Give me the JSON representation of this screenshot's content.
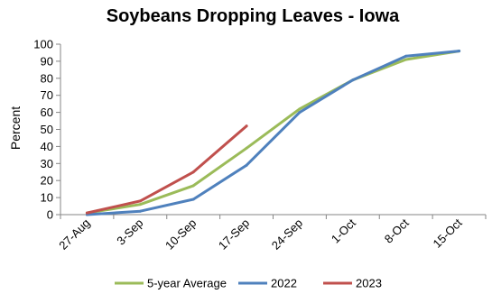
{
  "chart_data": {
    "type": "line",
    "title": "Soybeans Dropping Leaves - Iowa",
    "xlabel": "",
    "ylabel": "Percent",
    "categories": [
      "27-Aug",
      "3-Sep",
      "10-Sep",
      "17-Sep",
      "24-Sep",
      "1-Oct",
      "8-Oct",
      "15-Oct"
    ],
    "ylim": [
      0,
      100
    ],
    "yticks": [
      0,
      10,
      20,
      30,
      40,
      50,
      60,
      70,
      80,
      90,
      100
    ],
    "grid": false,
    "legend_position": "bottom",
    "series": [
      {
        "name": "5-year Average",
        "color": "#9BBB59",
        "x": [
          0,
          1,
          2,
          3,
          4,
          5,
          6,
          7
        ],
        "y": [
          1,
          6,
          17,
          39,
          62,
          79,
          91,
          96
        ]
      },
      {
        "name": "2022",
        "color": "#4F81BD",
        "x": [
          0,
          1,
          2,
          3,
          4,
          5,
          6,
          7
        ],
        "y": [
          0,
          2,
          9,
          29,
          60,
          79,
          93,
          96
        ]
      },
      {
        "name": "2023",
        "color": "#C0504D",
        "x": [
          0,
          1,
          2,
          3
        ],
        "y": [
          1,
          8,
          25,
          52
        ]
      }
    ]
  }
}
